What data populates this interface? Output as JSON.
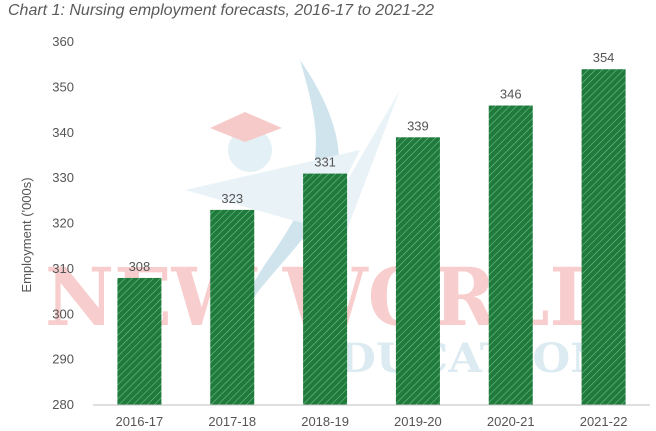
{
  "chart_data": {
    "type": "bar",
    "title": "Chart 1: Nursing employment forecasts, 2016-17 to 2021-22",
    "ylabel": "Employment ('000s)",
    "xlabel": "",
    "categories": [
      "2016-17",
      "2017-18",
      "2018-19",
      "2019-20",
      "2020-21",
      "2021-22"
    ],
    "values": [
      308,
      323,
      331,
      339,
      346,
      354
    ],
    "data_labels": [
      "308",
      "323",
      "331",
      "339",
      "346",
      "354"
    ],
    "ylim": [
      280,
      360
    ],
    "yticks": [
      280,
      290,
      300,
      310,
      320,
      330,
      340,
      350,
      360
    ],
    "bar_color": "#1f7a3c",
    "bar_pattern": "diagonal-hatch",
    "grid": false,
    "legend": "none"
  },
  "watermark": {
    "line1": "NEW WORLD",
    "line2": "EDUCATION",
    "color1": "#f4a6a6",
    "color2": "#bfdbe6"
  }
}
